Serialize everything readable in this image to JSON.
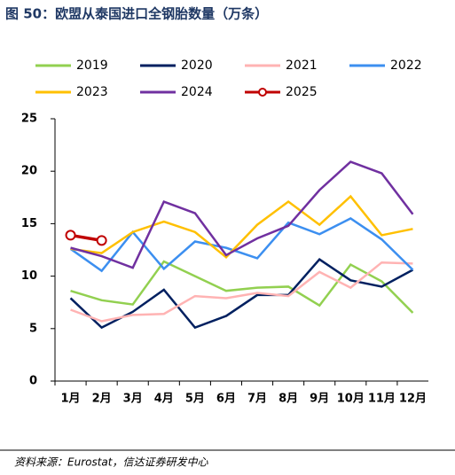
{
  "chart_data": {
    "type": "line",
    "title": "图 50：欧盟从泰国进口全钢胎数量（万条）",
    "source": "资料来源：Eurostat，信达证券研发中心",
    "categories": [
      "1月",
      "2月",
      "3月",
      "4月",
      "5月",
      "6月",
      "7月",
      "8月",
      "9月",
      "10月",
      "11月",
      "12月"
    ],
    "series": [
      {
        "name": "2019",
        "color": "#92d050",
        "values": [
          8.6,
          7.7,
          7.3,
          11.4,
          10.0,
          8.6,
          8.9,
          9.0,
          7.2,
          11.1,
          9.5,
          6.5
        ]
      },
      {
        "name": "2020",
        "color": "#002060",
        "values": [
          7.9,
          5.1,
          6.6,
          8.7,
          5.1,
          6.2,
          8.2,
          8.2,
          11.6,
          9.6,
          9.0,
          10.6
        ]
      },
      {
        "name": "2021",
        "color": "#ffb3b3",
        "values": [
          6.8,
          5.7,
          6.3,
          6.4,
          8.1,
          7.9,
          8.4,
          8.1,
          10.4,
          8.9,
          11.3,
          11.2
        ]
      },
      {
        "name": "2022",
        "color": "#3c8ff0",
        "values": [
          12.6,
          10.5,
          14.2,
          10.7,
          13.3,
          12.7,
          11.7,
          15.1,
          14.0,
          15.5,
          13.5,
          10.6
        ]
      },
      {
        "name": "2023",
        "color": "#ffc000",
        "values": [
          12.6,
          12.2,
          14.2,
          15.2,
          14.2,
          11.8,
          14.9,
          17.1,
          14.9,
          17.6,
          13.9,
          14.5
        ]
      },
      {
        "name": "2024",
        "color": "#7030a0",
        "values": [
          12.7,
          11.9,
          10.8,
          17.1,
          16.0,
          12.0,
          13.6,
          14.8,
          18.2,
          20.9,
          19.8,
          15.9
        ]
      },
      {
        "name": "2025",
        "color": "#c00000",
        "markers": true,
        "values": [
          13.9,
          13.4,
          null,
          null,
          null,
          null,
          null,
          null,
          null,
          null,
          null,
          null
        ]
      }
    ],
    "ylim": [
      0,
      25
    ],
    "yticks": [
      0,
      5,
      10,
      15,
      20,
      25
    ]
  }
}
